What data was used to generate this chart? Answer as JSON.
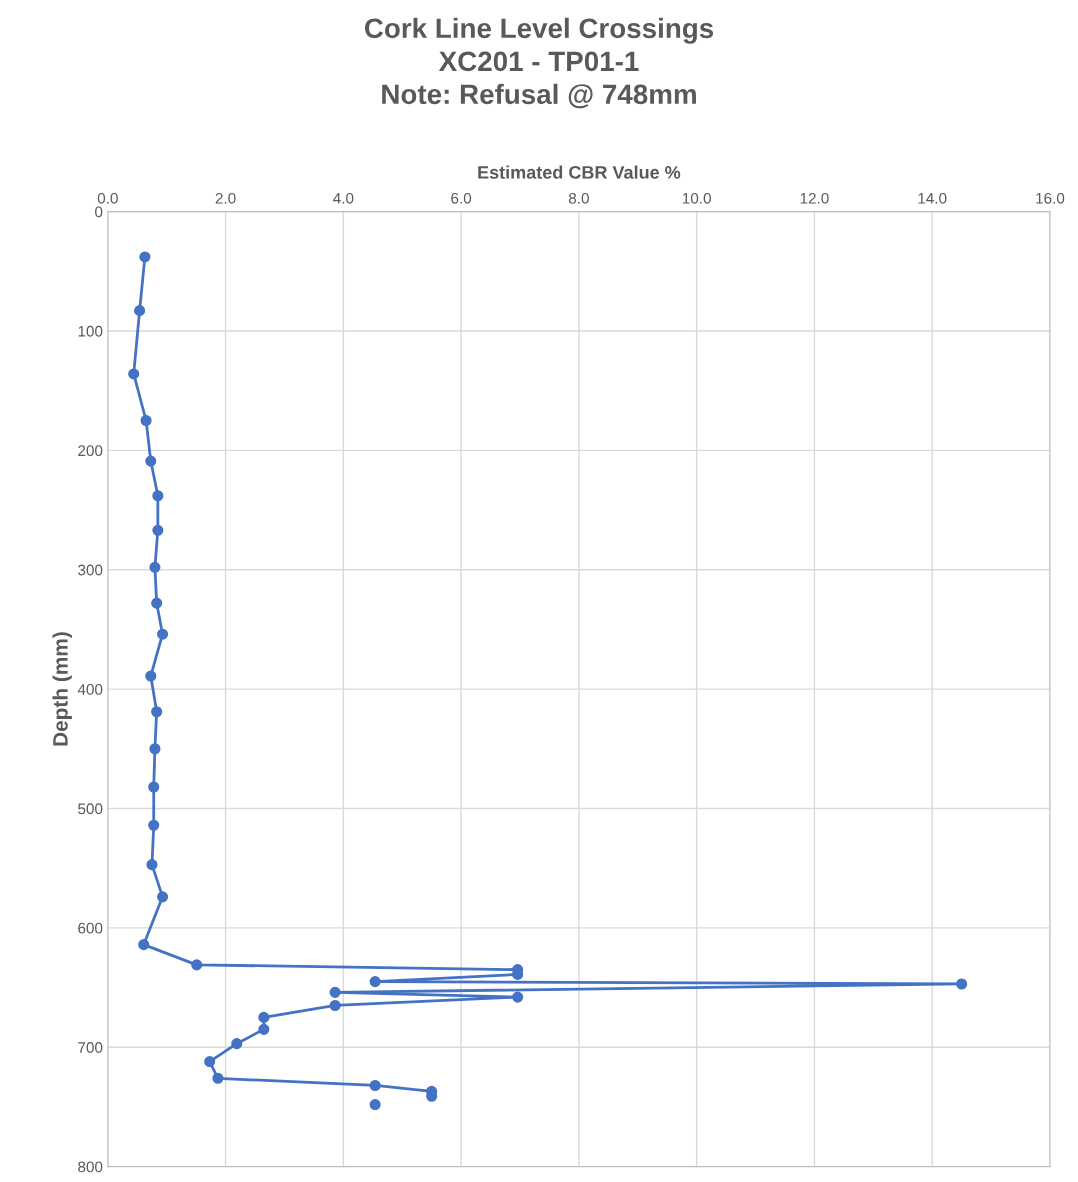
{
  "chart_data": {
    "type": "line",
    "title": "Cork Line Level Crossings\nXC201 - TP01-1\nNote: Refusal @ 748mm",
    "xlabel": "Estimated CBR Value %",
    "ylabel": "Depth (mm)",
    "xlim": [
      0,
      16
    ],
    "xticks": [
      {
        "value": 0,
        "label": "0.0"
      },
      {
        "value": 2,
        "label": "2.0"
      },
      {
        "value": 4,
        "label": "4.0"
      },
      {
        "value": 6,
        "label": "6.0"
      },
      {
        "value": 8,
        "label": "8.0"
      },
      {
        "value": 10,
        "label": "10.0"
      },
      {
        "value": 12,
        "label": "12.0"
      },
      {
        "value": 14,
        "label": "14.0"
      },
      {
        "value": 16,
        "label": "16.0"
      }
    ],
    "ylim": [
      800,
      0
    ],
    "yticks": [
      0,
      100,
      200,
      300,
      400,
      500,
      600,
      700,
      800
    ],
    "grid": true,
    "marker": "circle",
    "line_style": "solid",
    "series": [
      {
        "color": "#4472c4",
        "x": [
          0.63,
          0.54,
          0.44,
          0.65,
          0.73,
          0.85,
          0.85,
          0.8,
          0.83,
          0.93,
          0.73,
          0.83,
          0.8,
          0.78,
          0.78,
          0.75,
          0.93,
          0.61,
          1.51,
          6.96,
          6.96,
          4.54,
          14.5,
          3.86,
          6.96,
          3.86,
          2.65,
          2.65,
          2.19,
          1.73,
          1.87,
          4.54,
          5.5,
          5.5
        ],
        "values": [
          38,
          83,
          136,
          175,
          209,
          238,
          267,
          298,
          328,
          354,
          389,
          419,
          450,
          482,
          514,
          547,
          574,
          614,
          631,
          635,
          639,
          645,
          647,
          654,
          658,
          665,
          675,
          685,
          697,
          712,
          726,
          732,
          737,
          741
        ]
      },
      {
        "color": "#4472c4",
        "x": [
          4.54
        ],
        "values": [
          748
        ]
      }
    ]
  }
}
